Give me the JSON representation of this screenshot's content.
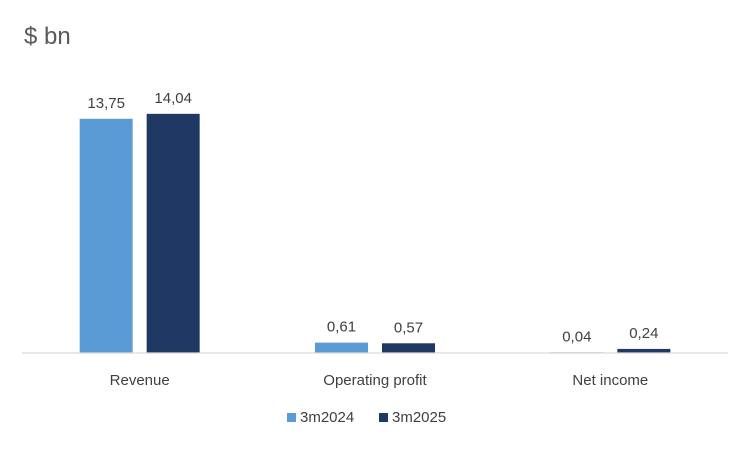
{
  "chart_data": {
    "type": "bar",
    "title": "$ bn",
    "categories": [
      "Revenue",
      "Operating profit",
      "Net income"
    ],
    "series": [
      {
        "name": "3m2024",
        "color": "#5b9bd5",
        "values": [
          13.75,
          0.61,
          0.04
        ],
        "labels": [
          "13,75",
          "0,61",
          "0,04"
        ]
      },
      {
        "name": "3m2025",
        "color": "#1f3864",
        "values": [
          14.04,
          0.57,
          0.24
        ],
        "labels": [
          "14,04",
          "0,57",
          "0,24"
        ]
      }
    ],
    "xlabel": "",
    "ylabel": "",
    "ylim": [
      0,
      14.5
    ],
    "grid": false,
    "legend_position": "bottom",
    "axis_color": "#d9d9d9"
  }
}
